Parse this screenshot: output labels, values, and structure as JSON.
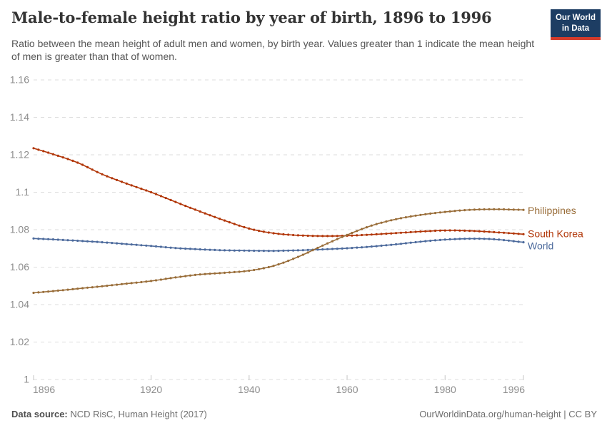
{
  "header": {
    "title": "Male-to-female height ratio by year of birth, 1896 to 1996",
    "subtitle": "Ratio between the mean height of adult men and women, by birth year. Values greater than 1 indicate the mean height of men is greater than that of women.",
    "logo": {
      "line1": "Our World",
      "line2": "in Data",
      "bg_color": "#1d3d63",
      "bar_color": "#d43b2b"
    }
  },
  "chart_data": {
    "type": "line",
    "title": "Male-to-female height ratio by year of birth, 1896 to 1996",
    "xlabel": "",
    "ylabel": "",
    "x_range": [
      1896,
      1996
    ],
    "y_range": [
      1,
      1.16
    ],
    "grid": "dashed-horizontal",
    "legend_position": "right-of-line-ends",
    "x_ticks": [
      1896,
      1920,
      1940,
      1960,
      1980,
      1996
    ],
    "y_ticks": [
      {
        "v": 1,
        "label": "1"
      },
      {
        "v": 1.02,
        "label": "1.02"
      },
      {
        "v": 1.04,
        "label": "1.04"
      },
      {
        "v": 1.06,
        "label": "1.06"
      },
      {
        "v": 1.08,
        "label": "1.08"
      },
      {
        "v": 1.1,
        "label": "1.1"
      },
      {
        "v": 1.12,
        "label": "1.12"
      },
      {
        "v": 1.14,
        "label": "1.14"
      },
      {
        "v": 1.16,
        "label": "1.16"
      }
    ],
    "grid_color": "#dddddd",
    "axis_label_color": "#8d8d8d",
    "tick_mark_color": "#c4c4c4",
    "series": [
      {
        "name": "South Korea",
        "color": "#B13507",
        "points": [
          [
            1896,
            1.1235
          ],
          [
            1900,
            1.1203
          ],
          [
            1905,
            1.1158
          ],
          [
            1910,
            1.1096
          ],
          [
            1915,
            1.1046
          ],
          [
            1920,
            1.1
          ],
          [
            1925,
            1.0948
          ],
          [
            1930,
            1.0897
          ],
          [
            1935,
            1.0849
          ],
          [
            1940,
            1.0806
          ],
          [
            1945,
            1.0781
          ],
          [
            1950,
            1.077
          ],
          [
            1955,
            1.0766
          ],
          [
            1960,
            1.0768
          ],
          [
            1965,
            1.0774
          ],
          [
            1970,
            1.0782
          ],
          [
            1975,
            1.079
          ],
          [
            1980,
            1.0796
          ],
          [
            1985,
            1.0794
          ],
          [
            1990,
            1.0787
          ],
          [
            1996,
            1.0776
          ]
        ]
      },
      {
        "name": "World",
        "color": "#4C6A9C",
        "points": [
          [
            1896,
            1.0753
          ],
          [
            1900,
            1.0748
          ],
          [
            1905,
            1.0741
          ],
          [
            1910,
            1.0733
          ],
          [
            1915,
            1.0723
          ],
          [
            1920,
            1.0713
          ],
          [
            1925,
            1.0702
          ],
          [
            1930,
            1.0695
          ],
          [
            1935,
            1.069
          ],
          [
            1940,
            1.0688
          ],
          [
            1945,
            1.0687
          ],
          [
            1950,
            1.069
          ],
          [
            1955,
            1.0695
          ],
          [
            1960,
            1.0701
          ],
          [
            1965,
            1.071
          ],
          [
            1970,
            1.0722
          ],
          [
            1975,
            1.0736
          ],
          [
            1980,
            1.0747
          ],
          [
            1985,
            1.0752
          ],
          [
            1990,
            1.0749
          ],
          [
            1996,
            1.0733
          ]
        ]
      },
      {
        "name": "Philippines",
        "color": "#996D39",
        "points": [
          [
            1896,
            1.0463
          ],
          [
            1900,
            1.0472
          ],
          [
            1905,
            1.0485
          ],
          [
            1910,
            1.0498
          ],
          [
            1915,
            1.0512
          ],
          [
            1920,
            1.0526
          ],
          [
            1925,
            1.0545
          ],
          [
            1930,
            1.0561
          ],
          [
            1935,
            1.057
          ],
          [
            1940,
            1.0581
          ],
          [
            1945,
            1.0607
          ],
          [
            1950,
            1.0655
          ],
          [
            1955,
            1.0715
          ],
          [
            1960,
            1.0772
          ],
          [
            1965,
            1.0822
          ],
          [
            1970,
            1.0856
          ],
          [
            1975,
            1.0879
          ],
          [
            1980,
            1.0895
          ],
          [
            1985,
            1.0906
          ],
          [
            1990,
            1.0909
          ],
          [
            1996,
            1.0906
          ]
        ]
      }
    ]
  },
  "footer": {
    "source_label": "Data source:",
    "source_value": " NCD RisC, Human Height (2017)",
    "credit": "OurWorldinData.org/human-height | CC BY"
  }
}
